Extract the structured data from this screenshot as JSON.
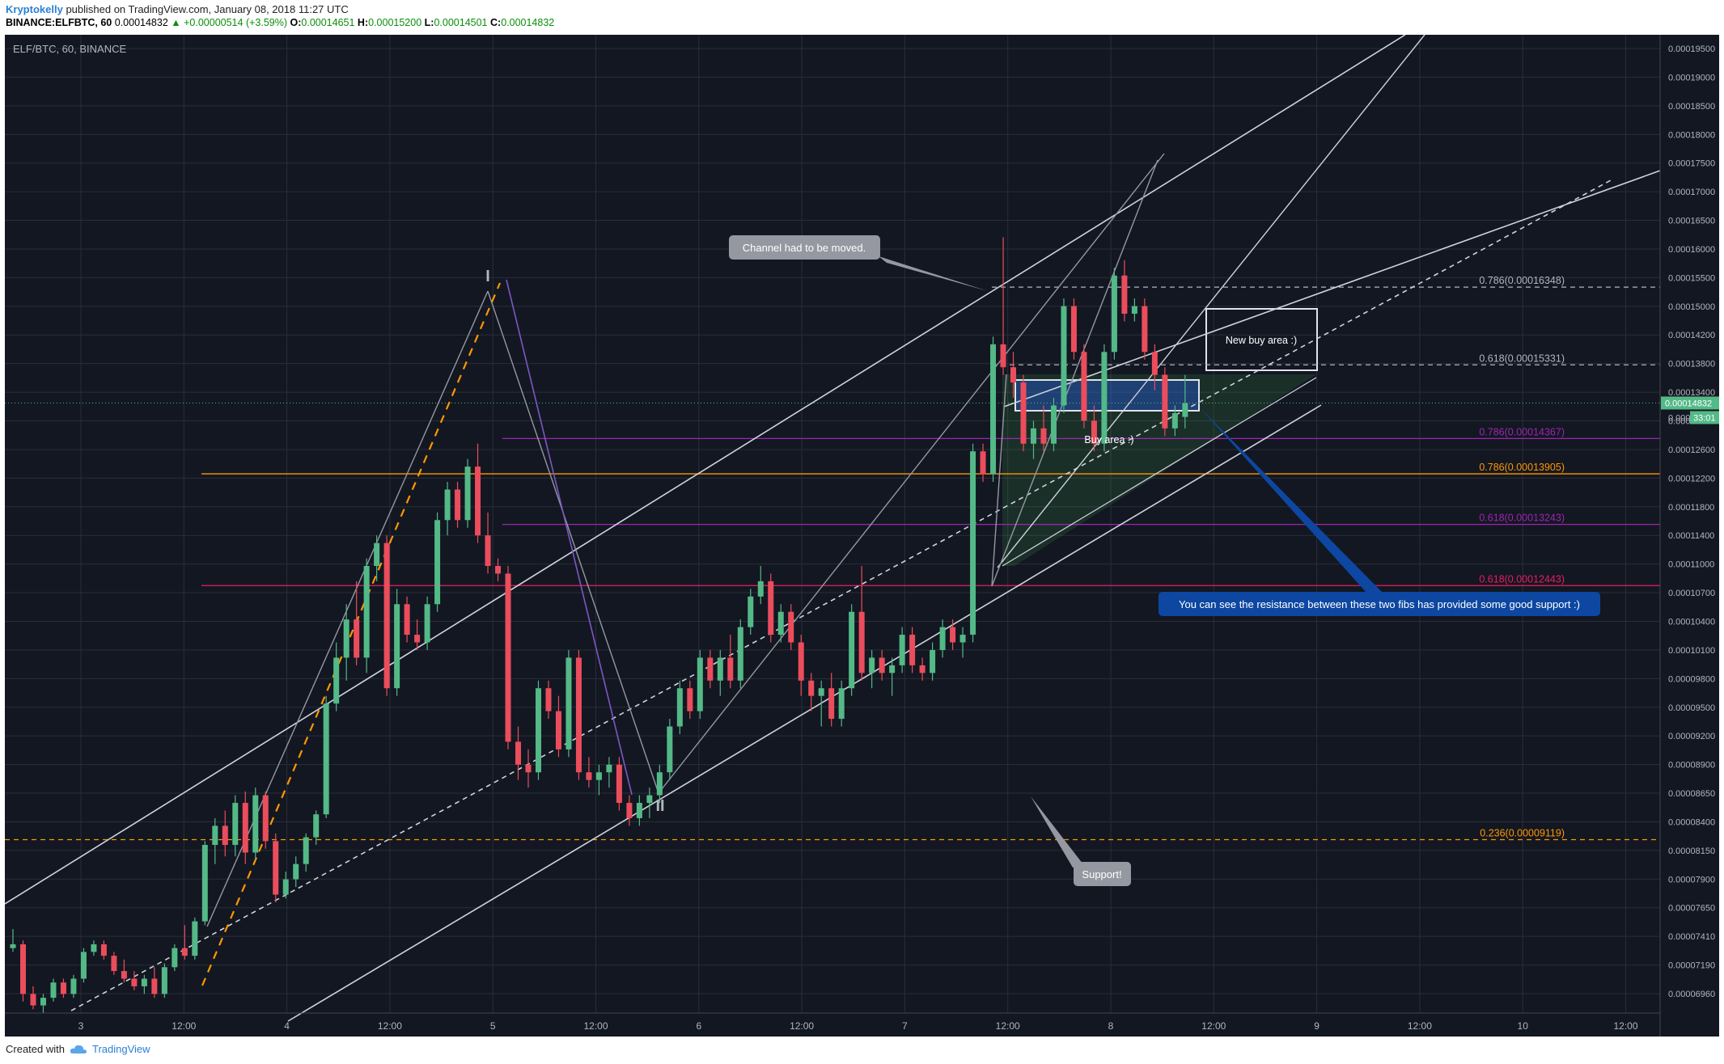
{
  "header": {
    "author": "Kryptokelly",
    "published_text": "published on TradingView.com, January 08, 2018 11:27 UTC",
    "symbol_line": "BINANCE:ELFBTC, 60",
    "price": "0.00014832",
    "change": "▲ +0.00000514 (+3.59%)",
    "o_label": "O:",
    "o_value": "0.00014651",
    "h_label": "H:",
    "h_value": "0.00015200",
    "l_label": "L:",
    "l_value": "0.00014501",
    "c_label": "C:",
    "c_value": "0.00014832"
  },
  "chart_title": "ELF/BTC, 60, BINANCE",
  "price_axis_labels": [
    "0.00019500",
    "0.00019000",
    "0.00018500",
    "0.00018000",
    "0.00017500",
    "0.00017000",
    "0.00016500",
    "0.00016000",
    "0.00015500",
    "0.00015000",
    "0.00014200",
    "0.00013800",
    "0.00013400",
    "0.00013000",
    "0.00012600",
    "0.00012200",
    "0.00011800",
    "0.00011400",
    "0.00011000",
    "0.00010700",
    "0.00010400",
    "0.00010100",
    "0.00009800",
    "0.00009500",
    "0.00009200",
    "0.00008900",
    "0.00008650",
    "0.00008400",
    "0.00008150",
    "0.00007900",
    "0.00007650",
    "0.00007410",
    "0.00007190",
    "0.00006960"
  ],
  "current_price_tag": "0.00014832",
  "countdown_tag": "33:01",
  "hidden_label_partial": "0.000",
  "time_axis_labels": [
    "3",
    "12:00",
    "4",
    "12:00",
    "5",
    "12:00",
    "6",
    "12:00",
    "7",
    "12:00",
    "8",
    "12:00",
    "9",
    "12:00",
    "10",
    "12:00"
  ],
  "wave_labels": [
    "I",
    "II"
  ],
  "fib_labels": [
    {
      "text": "0.786(0.00016348)",
      "color": "#b2b5be"
    },
    {
      "text": "0.618(0.00015331)",
      "color": "#b2b5be"
    },
    {
      "text": "0.786(0.00014367)",
      "color": "#9c27b0"
    },
    {
      "text": "0.786(0.00013905)",
      "color": "#ff9800"
    },
    {
      "text": "0.618(0.00013243)",
      "color": "#9c27b0"
    },
    {
      "text": "0.618(0.00012443)",
      "color": "#e91e63"
    },
    {
      "text": "0.236(0.00009119)",
      "color": "#ff9800"
    }
  ],
  "annotations": {
    "channel_moved": "Channel had to be moved.",
    "new_buy_area": "New buy area :)",
    "buy_area": "Buy area :)",
    "resistance_note": "You can see the resistance between these two fibs has provided some good support :)",
    "support": "Support!"
  },
  "colors": {
    "background": "#131722",
    "up_candle": "#53b987",
    "down_candle": "#eb4d5c",
    "axis_text": "#b2b5be",
    "grid": "#2a2e39",
    "accent_blue": "#0d47a1"
  },
  "footer": {
    "created_with": "Created with",
    "brand": "TradingView"
  },
  "chart_data": {
    "type": "candlestick",
    "symbol": "ELF/BTC",
    "interval": "60",
    "exchange": "BINANCE",
    "ylim": [
      6.85e-05,
      0.0001965
    ],
    "candles": [
      {
        "o": 7.7e-05,
        "h": 7.95e-05,
        "l": 7.65e-05,
        "c": 7.75e-05
      },
      {
        "o": 7.75e-05,
        "h": 7.8e-05,
        "l": 7e-05,
        "c": 7.1e-05
      },
      {
        "o": 7.1e-05,
        "h": 7.2e-05,
        "l": 6.9e-05,
        "c": 6.95e-05
      },
      {
        "o": 6.95e-05,
        "h": 7.1e-05,
        "l": 6.85e-05,
        "c": 7.05e-05
      },
      {
        "o": 7.05e-05,
        "h": 7.3e-05,
        "l": 7e-05,
        "c": 7.25e-05
      },
      {
        "o": 7.25e-05,
        "h": 7.3e-05,
        "l": 7.05e-05,
        "c": 7.1e-05
      },
      {
        "o": 7.1e-05,
        "h": 7.35e-05,
        "l": 7.05e-05,
        "c": 7.3e-05
      },
      {
        "o": 7.3e-05,
        "h": 7.7e-05,
        "l": 7.25e-05,
        "c": 7.65e-05
      },
      {
        "o": 7.65e-05,
        "h": 7.8e-05,
        "l": 7.6e-05,
        "c": 7.75e-05
      },
      {
        "o": 7.75e-05,
        "h": 7.8e-05,
        "l": 7.55e-05,
        "c": 7.6e-05
      },
      {
        "o": 7.6e-05,
        "h": 7.65e-05,
        "l": 7.35e-05,
        "c": 7.4e-05
      },
      {
        "o": 7.4e-05,
        "h": 7.55e-05,
        "l": 7.25e-05,
        "c": 7.3e-05
      },
      {
        "o": 7.3e-05,
        "h": 7.4e-05,
        "l": 7.15e-05,
        "c": 7.2e-05
      },
      {
        "o": 7.2e-05,
        "h": 7.35e-05,
        "l": 7.1e-05,
        "c": 7.3e-05
      },
      {
        "o": 7.3e-05,
        "h": 7.45e-05,
        "l": 7.05e-05,
        "c": 7.1e-05
      },
      {
        "o": 7.1e-05,
        "h": 7.5e-05,
        "l": 7.05e-05,
        "c": 7.45e-05
      },
      {
        "o": 7.45e-05,
        "h": 7.75e-05,
        "l": 7.4e-05,
        "c": 7.7e-05
      },
      {
        "o": 7.7e-05,
        "h": 8e-05,
        "l": 7.55e-05,
        "c": 7.6e-05
      },
      {
        "o": 7.6e-05,
        "h": 8.1e-05,
        "l": 7.55e-05,
        "c": 8.05e-05
      },
      {
        "o": 8.05e-05,
        "h": 9.1e-05,
        "l": 8e-05,
        "c": 9.05e-05
      },
      {
        "o": 9.05e-05,
        "h": 9.4e-05,
        "l": 8.8e-05,
        "c": 9.3e-05
      },
      {
        "o": 9.3e-05,
        "h": 9.5e-05,
        "l": 8.9e-05,
        "c": 9.05e-05
      },
      {
        "o": 9.05e-05,
        "h": 9.7e-05,
        "l": 8.9e-05,
        "c": 9.6e-05
      },
      {
        "o": 9.6e-05,
        "h": 9.75e-05,
        "l": 8.8e-05,
        "c": 8.95e-05
      },
      {
        "o": 8.95e-05,
        "h": 9.8e-05,
        "l": 8.85e-05,
        "c": 9.7e-05
      },
      {
        "o": 9.7e-05,
        "h": 9.75e-05,
        "l": 9e-05,
        "c": 9.1e-05
      },
      {
        "o": 9.1e-05,
        "h": 9.2e-05,
        "l": 8.3e-05,
        "c": 8.4e-05
      },
      {
        "o": 8.4e-05,
        "h": 8.7e-05,
        "l": 8.35e-05,
        "c": 8.6e-05
      },
      {
        "o": 8.6e-05,
        "h": 8.9e-05,
        "l": 8.5e-05,
        "c": 8.8e-05
      },
      {
        "o": 8.8e-05,
        "h": 9.2e-05,
        "l": 8.7e-05,
        "c": 9.15e-05
      },
      {
        "o": 9.15e-05,
        "h": 9.5e-05,
        "l": 9.05e-05,
        "c": 9.45e-05
      },
      {
        "o": 9.45e-05,
        "h": 0.00011,
        "l": 9.4e-05,
        "c": 0.000109
      },
      {
        "o": 0.000109,
        "h": 0.000117,
        "l": 0.000108,
        "c": 0.000115
      },
      {
        "o": 0.000115,
        "h": 0.000122,
        "l": 0.000112,
        "c": 0.00012
      },
      {
        "o": 0.00012,
        "h": 0.000125,
        "l": 0.000114,
        "c": 0.000115
      },
      {
        "o": 0.000115,
        "h": 0.000128,
        "l": 0.000113,
        "c": 0.000127
      },
      {
        "o": 0.000127,
        "h": 0.000131,
        "l": 0.000125,
        "c": 0.00013
      },
      {
        "o": 0.00013,
        "h": 0.000131,
        "l": 0.00011,
        "c": 0.000111
      },
      {
        "o": 0.000111,
        "h": 0.000124,
        "l": 0.00011,
        "c": 0.000122
      },
      {
        "o": 0.000122,
        "h": 0.000123,
        "l": 0.000117,
        "c": 0.000118
      },
      {
        "o": 0.000118,
        "h": 0.00012,
        "l": 0.000116,
        "c": 0.000117
      },
      {
        "o": 0.000117,
        "h": 0.000123,
        "l": 0.000116,
        "c": 0.000122
      },
      {
        "o": 0.000122,
        "h": 0.000134,
        "l": 0.000121,
        "c": 0.000133
      },
      {
        "o": 0.000133,
        "h": 0.000138,
        "l": 0.000131,
        "c": 0.000137
      },
      {
        "o": 0.000137,
        "h": 0.000138,
        "l": 0.000132,
        "c": 0.000133
      },
      {
        "o": 0.000133,
        "h": 0.000141,
        "l": 0.000132,
        "c": 0.00014
      },
      {
        "o": 0.00014,
        "h": 0.000143,
        "l": 0.00013,
        "c": 0.000131
      },
      {
        "o": 0.000131,
        "h": 0.000134,
        "l": 0.000126,
        "c": 0.000127
      },
      {
        "o": 0.000127,
        "h": 0.000128,
        "l": 0.000125,
        "c": 0.000126
      },
      {
        "o": 0.000126,
        "h": 0.000127,
        "l": 0.000103,
        "c": 0.000104
      },
      {
        "o": 0.000104,
        "h": 0.000106,
        "l": 9.9e-05,
        "c": 0.000101
      },
      {
        "o": 0.000101,
        "h": 0.000103,
        "l": 9.8e-05,
        "c": 0.0001
      },
      {
        "o": 0.0001,
        "h": 0.000112,
        "l": 9.9e-05,
        "c": 0.000111
      },
      {
        "o": 0.000111,
        "h": 0.000112,
        "l": 0.000107,
        "c": 0.000108
      },
      {
        "o": 0.000108,
        "h": 0.00011,
        "l": 0.000102,
        "c": 0.000103
      },
      {
        "o": 0.000103,
        "h": 0.000116,
        "l": 0.000102,
        "c": 0.000115
      },
      {
        "o": 0.000115,
        "h": 0.000116,
        "l": 9.9e-05,
        "c": 0.0001
      },
      {
        "o": 0.0001,
        "h": 0.000102,
        "l": 9.8e-05,
        "c": 9.9e-05
      },
      {
        "o": 9.9e-05,
        "h": 0.000101,
        "l": 9.7e-05,
        "c": 0.0001
      },
      {
        "o": 0.0001,
        "h": 0.000102,
        "l": 9.8e-05,
        "c": 0.000101
      },
      {
        "o": 0.000101,
        "h": 0.000102,
        "l": 9.5e-05,
        "c": 9.6e-05
      },
      {
        "o": 9.6e-05,
        "h": 9.7e-05,
        "l": 9.3e-05,
        "c": 9.4e-05
      },
      {
        "o": 9.4e-05,
        "h": 9.7e-05,
        "l": 9.3e-05,
        "c": 9.6e-05
      },
      {
        "o": 9.6e-05,
        "h": 9.8e-05,
        "l": 9.4e-05,
        "c": 9.7e-05
      },
      {
        "o": 9.7e-05,
        "h": 0.000101,
        "l": 9.6e-05,
        "c": 0.0001
      },
      {
        "o": 0.0001,
        "h": 0.000107,
        "l": 9.9e-05,
        "c": 0.000106
      },
      {
        "o": 0.000106,
        "h": 0.000112,
        "l": 0.000105,
        "c": 0.000111
      },
      {
        "o": 0.000111,
        "h": 0.000112,
        "l": 0.000107,
        "c": 0.000108
      },
      {
        "o": 0.000108,
        "h": 0.000116,
        "l": 0.000107,
        "c": 0.000115
      },
      {
        "o": 0.000115,
        "h": 0.000116,
        "l": 0.000111,
        "c": 0.000112
      },
      {
        "o": 0.000112,
        "h": 0.000116,
        "l": 0.00011,
        "c": 0.000115
      },
      {
        "o": 0.000115,
        "h": 0.000118,
        "l": 0.000111,
        "c": 0.000112
      },
      {
        "o": 0.000112,
        "h": 0.00012,
        "l": 0.000111,
        "c": 0.000119
      },
      {
        "o": 0.000119,
        "h": 0.000124,
        "l": 0.000118,
        "c": 0.000123
      },
      {
        "o": 0.000123,
        "h": 0.000127,
        "l": 0.000122,
        "c": 0.000125
      },
      {
        "o": 0.000125,
        "h": 0.000126,
        "l": 0.000117,
        "c": 0.000118
      },
      {
        "o": 0.000118,
        "h": 0.000122,
        "l": 0.000117,
        "c": 0.000121
      },
      {
        "o": 0.000121,
        "h": 0.000122,
        "l": 0.000116,
        "c": 0.000117
      },
      {
        "o": 0.000117,
        "h": 0.000118,
        "l": 0.00011,
        "c": 0.000112
      },
      {
        "o": 0.000112,
        "h": 0.000113,
        "l": 0.000108,
        "c": 0.00011
      },
      {
        "o": 0.00011,
        "h": 0.000112,
        "l": 0.000106,
        "c": 0.000111
      },
      {
        "o": 0.000111,
        "h": 0.000113,
        "l": 0.000106,
        "c": 0.000107
      },
      {
        "o": 0.000107,
        "h": 0.000112,
        "l": 0.000106,
        "c": 0.000111
      },
      {
        "o": 0.000111,
        "h": 0.000122,
        "l": 0.00011,
        "c": 0.000121
      },
      {
        "o": 0.000121,
        "h": 0.000127,
        "l": 0.000112,
        "c": 0.000113
      },
      {
        "o": 0.000113,
        "h": 0.000116,
        "l": 0.000111,
        "c": 0.000115
      },
      {
        "o": 0.000115,
        "h": 0.000116,
        "l": 0.000112,
        "c": 0.000113
      },
      {
        "o": 0.000113,
        "h": 0.000115,
        "l": 0.00011,
        "c": 0.000114
      },
      {
        "o": 0.000114,
        "h": 0.000119,
        "l": 0.000113,
        "c": 0.000118
      },
      {
        "o": 0.000118,
        "h": 0.000119,
        "l": 0.000113,
        "c": 0.000114
      },
      {
        "o": 0.000114,
        "h": 0.000115,
        "l": 0.000112,
        "c": 0.000113
      },
      {
        "o": 0.000113,
        "h": 0.000117,
        "l": 0.000112,
        "c": 0.000116
      },
      {
        "o": 0.000116,
        "h": 0.00012,
        "l": 0.000115,
        "c": 0.000119
      },
      {
        "o": 0.000119,
        "h": 0.00012,
        "l": 0.000116,
        "c": 0.000117
      },
      {
        "o": 0.000117,
        "h": 0.000119,
        "l": 0.000115,
        "c": 0.000118
      },
      {
        "o": 0.000118,
        "h": 0.000143,
        "l": 0.000117,
        "c": 0.000142
      },
      {
        "o": 0.000142,
        "h": 0.000143,
        "l": 0.000138,
        "c": 0.000139
      },
      {
        "o": 0.000139,
        "h": 0.000157,
        "l": 0.000138,
        "c": 0.000156
      },
      {
        "o": 0.000156,
        "h": 0.00017,
        "l": 0.000152,
        "c": 0.000153
      },
      {
        "o": 0.000153,
        "h": 0.000155,
        "l": 0.000149,
        "c": 0.000151
      },
      {
        "o": 0.000151,
        "h": 0.000152,
        "l": 0.000142,
        "c": 0.000143
      },
      {
        "o": 0.000143,
        "h": 0.000146,
        "l": 0.000141,
        "c": 0.000145
      },
      {
        "o": 0.000145,
        "h": 0.000148,
        "l": 0.000142,
        "c": 0.000143
      },
      {
        "o": 0.000143,
        "h": 0.000149,
        "l": 0.000142,
        "c": 0.000148
      },
      {
        "o": 0.000148,
        "h": 0.000162,
        "l": 0.000147,
        "c": 0.000161
      },
      {
        "o": 0.000161,
        "h": 0.000162,
        "l": 0.000154,
        "c": 0.000155
      },
      {
        "o": 0.000155,
        "h": 0.000156,
        "l": 0.000145,
        "c": 0.000146
      },
      {
        "o": 0.000146,
        "h": 0.000148,
        "l": 0.000142,
        "c": 0.000143
      },
      {
        "o": 0.000143,
        "h": 0.000156,
        "l": 0.000142,
        "c": 0.000155
      },
      {
        "o": 0.000155,
        "h": 0.000166,
        "l": 0.000154,
        "c": 0.000165
      },
      {
        "o": 0.000165,
        "h": 0.000167,
        "l": 0.000159,
        "c": 0.00016
      },
      {
        "o": 0.00016,
        "h": 0.000162,
        "l": 0.000159,
        "c": 0.000161
      },
      {
        "o": 0.000161,
        "h": 0.000162,
        "l": 0.000154,
        "c": 0.000155
      },
      {
        "o": 0.000155,
        "h": 0.000156,
        "l": 0.00015,
        "c": 0.000152
      },
      {
        "o": 0.000152,
        "h": 0.000153,
        "l": 0.000144,
        "c": 0.000145
      },
      {
        "o": 0.000145,
        "h": 0.000148,
        "l": 0.000144,
        "c": 0.000147
      },
      {
        "o": 0.0001465,
        "h": 0.000152,
        "l": 0.000145,
        "c": 0.0001483
      }
    ],
    "horizontal_levels": [
      {
        "label": "0.786(0.00016348)",
        "price": 0.00016348
      },
      {
        "label": "0.618(0.00015331)",
        "price": 0.00015331
      },
      {
        "label": "0.786(0.00014367)",
        "price": 0.00014367
      },
      {
        "label": "0.786(0.00013905)",
        "price": 0.00013905
      },
      {
        "label": "0.618(0.00013243)",
        "price": 0.00013243
      },
      {
        "label": "0.618(0.00012443)",
        "price": 0.00012443
      },
      {
        "label": "0.236(0.00009119)",
        "price": 9.119e-05
      }
    ],
    "current_price": 0.00014832
  }
}
